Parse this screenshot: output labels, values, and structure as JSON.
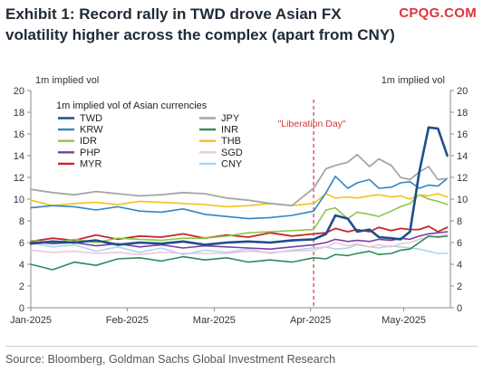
{
  "header": {
    "title": "Exhibit 1: Record rally in TWD drove Asian FX volatility higher across the complex (apart from CNY)",
    "watermark": "CPQG.COM"
  },
  "footer": {
    "source": "Source: Bloomberg, Goldman Sachs Global Investment Research"
  },
  "chart_data": {
    "type": "line",
    "title": "",
    "ylabel_left": "1m implied vol",
    "ylabel_right": "1m implied vol",
    "legend_title": "1m implied vol of Asian currencies",
    "legend_position": "top-left",
    "ylim": [
      0,
      20
    ],
    "yticks": [
      0,
      2,
      4,
      6,
      8,
      10,
      12,
      14,
      16,
      18,
      20
    ],
    "xlim": [
      "2025-01-01",
      "2025-05-16"
    ],
    "xticks": [
      {
        "label": "Jan-2025",
        "date": "2025-01-01"
      },
      {
        "label": "Feb-2025",
        "date": "2025-02-01"
      },
      {
        "label": "Mar-2025",
        "date": "2025-03-01"
      },
      {
        "label": "Apr-2025",
        "date": "2025-04-01"
      },
      {
        "label": "May-2025",
        "date": "2025-05-01"
      }
    ],
    "grid": false,
    "annotation": {
      "label": "\"Liberation Day\"",
      "date": "2025-04-02",
      "color": "#d23a3a"
    },
    "x": [
      "2025-01-01",
      "2025-01-08",
      "2025-01-15",
      "2025-01-22",
      "2025-01-29",
      "2025-02-05",
      "2025-02-12",
      "2025-02-19",
      "2025-02-26",
      "2025-03-05",
      "2025-03-12",
      "2025-03-19",
      "2025-03-26",
      "2025-04-02",
      "2025-04-06",
      "2025-04-09",
      "2025-04-13",
      "2025-04-16",
      "2025-04-20",
      "2025-04-23",
      "2025-04-27",
      "2025-04-30",
      "2025-05-03",
      "2025-05-06",
      "2025-05-09",
      "2025-05-12",
      "2025-05-15"
    ],
    "series": [
      {
        "name": "TWD",
        "color": "#1f4e8c",
        "width": 2.6,
        "values": [
          5.9,
          6.1,
          6.0,
          6.2,
          5.8,
          6.0,
          5.9,
          6.1,
          5.8,
          6.0,
          6.1,
          6.0,
          6.2,
          6.3,
          6.8,
          8.5,
          8.2,
          7.0,
          7.2,
          6.5,
          6.4,
          6.3,
          7.0,
          12.5,
          16.6,
          16.5,
          14.0
        ]
      },
      {
        "name": "JPY",
        "color": "#a6a6a6",
        "width": 1.8,
        "values": [
          10.9,
          10.6,
          10.4,
          10.7,
          10.5,
          10.3,
          10.4,
          10.6,
          10.5,
          10.1,
          9.9,
          9.6,
          9.4,
          11.0,
          12.8,
          13.1,
          13.4,
          14.1,
          13.0,
          13.7,
          13.1,
          12.0,
          11.8,
          12.5,
          13.0,
          11.8,
          11.9
        ]
      },
      {
        "name": "KRW",
        "color": "#2f86c9",
        "width": 1.6,
        "values": [
          9.2,
          9.4,
          9.3,
          9.0,
          9.3,
          8.9,
          8.8,
          9.1,
          8.6,
          8.4,
          8.2,
          8.3,
          8.5,
          8.9,
          10.6,
          12.1,
          11.0,
          11.5,
          11.8,
          11.0,
          11.1,
          11.5,
          11.6,
          11.0,
          11.3,
          11.2,
          11.9
        ]
      },
      {
        "name": "INR",
        "color": "#2e8b57",
        "width": 1.6,
        "values": [
          4.0,
          3.5,
          4.2,
          3.9,
          4.5,
          4.6,
          4.3,
          4.7,
          4.4,
          4.6,
          4.2,
          4.4,
          4.2,
          4.6,
          4.5,
          4.9,
          4.8,
          5.0,
          5.2,
          4.9,
          5.0,
          5.3,
          5.4,
          6.0,
          6.6,
          6.5,
          6.6
        ]
      },
      {
        "name": "IDR",
        "color": "#8ec645",
        "width": 1.6,
        "values": [
          6.2,
          6.0,
          6.3,
          6.0,
          6.4,
          6.3,
          6.2,
          6.4,
          6.4,
          6.6,
          6.9,
          7.0,
          7.1,
          7.2,
          9.0,
          9.2,
          8.2,
          8.8,
          8.6,
          8.4,
          8.9,
          9.3,
          9.6,
          10.4,
          10.0,
          9.8,
          9.5
        ]
      },
      {
        "name": "THB",
        "color": "#f2c21b",
        "width": 1.6,
        "values": [
          9.9,
          9.4,
          9.6,
          9.7,
          9.5,
          9.8,
          9.7,
          9.6,
          9.5,
          9.3,
          9.4,
          9.6,
          9.4,
          9.6,
          10.5,
          10.1,
          10.2,
          10.1,
          10.3,
          10.4,
          10.2,
          10.3,
          10.0,
          10.4,
          10.3,
          10.5,
          10.2
        ]
      },
      {
        "name": "PHP",
        "color": "#7b3fa3",
        "width": 1.6,
        "values": [
          6.1,
          5.9,
          6.0,
          5.7,
          5.9,
          5.6,
          5.8,
          5.5,
          5.7,
          5.6,
          5.5,
          5.4,
          5.6,
          5.8,
          6.0,
          6.3,
          6.1,
          6.2,
          6.1,
          6.3,
          6.2,
          6.4,
          6.3,
          6.6,
          6.8,
          6.9,
          7.0
        ]
      },
      {
        "name": "SGD",
        "color": "#eec6da",
        "width": 1.6,
        "values": [
          5.3,
          5.1,
          5.2,
          5.0,
          5.1,
          4.9,
          5.1,
          5.0,
          5.0,
          5.0,
          5.2,
          5.1,
          5.2,
          5.3,
          5.6,
          6.0,
          5.7,
          5.9,
          5.6,
          5.8,
          5.6,
          5.9,
          6.0,
          6.3,
          6.5,
          6.6,
          6.8
        ]
      },
      {
        "name": "MYR",
        "color": "#c6282b",
        "width": 1.8,
        "values": [
          6.1,
          6.4,
          6.2,
          6.7,
          6.3,
          6.6,
          6.5,
          6.8,
          6.4,
          6.7,
          6.5,
          6.9,
          6.6,
          6.8,
          6.9,
          7.3,
          7.0,
          7.2,
          7.0,
          7.4,
          7.1,
          7.3,
          7.2,
          7.2,
          7.5,
          7.0,
          7.4
        ]
      },
      {
        "name": "CNY",
        "color": "#a9d6ef",
        "width": 1.6,
        "values": [
          6.0,
          5.6,
          5.8,
          5.2,
          5.6,
          5.1,
          5.5,
          4.9,
          5.3,
          5.1,
          5.4,
          5.0,
          5.3,
          5.5,
          5.6,
          5.4,
          5.5,
          5.8,
          5.6,
          5.5,
          5.7,
          5.6,
          5.5,
          5.4,
          5.2,
          5.0,
          5.0
        ]
      }
    ]
  }
}
